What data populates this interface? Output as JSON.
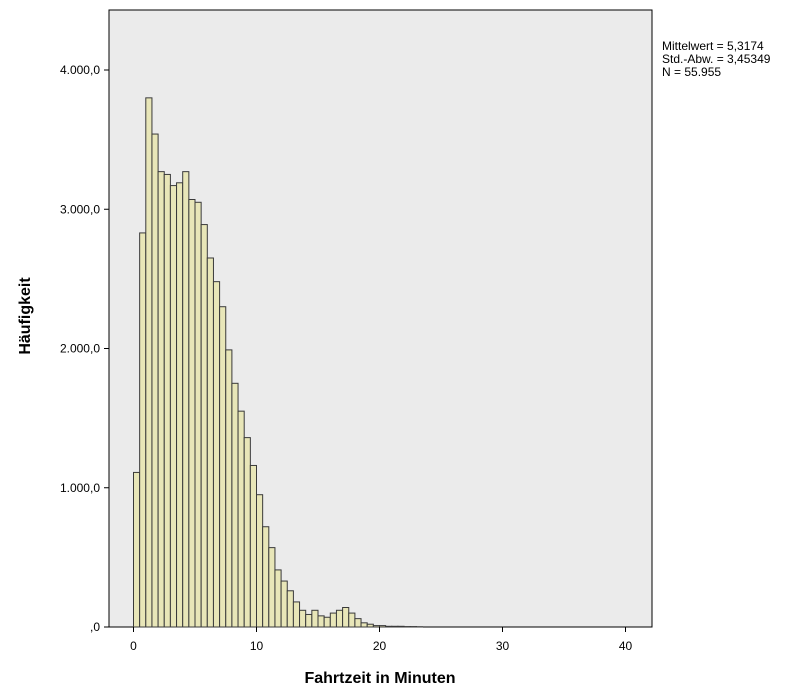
{
  "chart_data": {
    "type": "bar",
    "subtype": "histogram",
    "xlabel": "Fahrtzeit in Minuten",
    "ylabel": "Häufigkeit",
    "xlim": [
      -2.5,
      42
    ],
    "ylim": [
      0,
      4400
    ],
    "x_ticks": [
      0,
      10,
      20,
      30,
      40
    ],
    "x_tick_labels": [
      "0",
      "10",
      "20",
      "30",
      "40"
    ],
    "y_ticks": [
      0,
      1000,
      2000,
      3000,
      4000
    ],
    "y_tick_labels": [
      ",0",
      "1.000,0",
      "2.000,0",
      "3.000,0",
      "4.000,0"
    ],
    "grid": false,
    "plot_background": "#ebebeb",
    "bar_color": "#e8e6b8",
    "bar_edge_color": "#3a3a3a",
    "bin_width": 0.5,
    "bin_starts": [
      0,
      0.5,
      1,
      1.5,
      2,
      2.5,
      3,
      3.5,
      4,
      4.5,
      5,
      5.5,
      6,
      6.5,
      7,
      7.5,
      8,
      8.5,
      9,
      9.5,
      10,
      10.5,
      11,
      11.5,
      12,
      12.5,
      13,
      13.5,
      14,
      14.5,
      15,
      15.5,
      16,
      16.5,
      17,
      17.5,
      18,
      18.5,
      19,
      19.5,
      20,
      20.5,
      21,
      21.5,
      22,
      22.5,
      23
    ],
    "values": [
      1110,
      2830,
      3800,
      3540,
      3270,
      3250,
      3170,
      3190,
      3270,
      3070,
      3050,
      2890,
      2650,
      2480,
      2300,
      1990,
      1750,
      1550,
      1360,
      1160,
      950,
      720,
      570,
      410,
      330,
      260,
      180,
      120,
      90,
      120,
      80,
      70,
      100,
      120,
      140,
      100,
      60,
      30,
      20,
      10,
      10,
      5,
      5,
      5,
      3,
      3,
      2
    ],
    "annotations": [
      "Mittelwert = 5,3174",
      "Std.-Abw. = 3,45349",
      "N = 55.955"
    ]
  }
}
